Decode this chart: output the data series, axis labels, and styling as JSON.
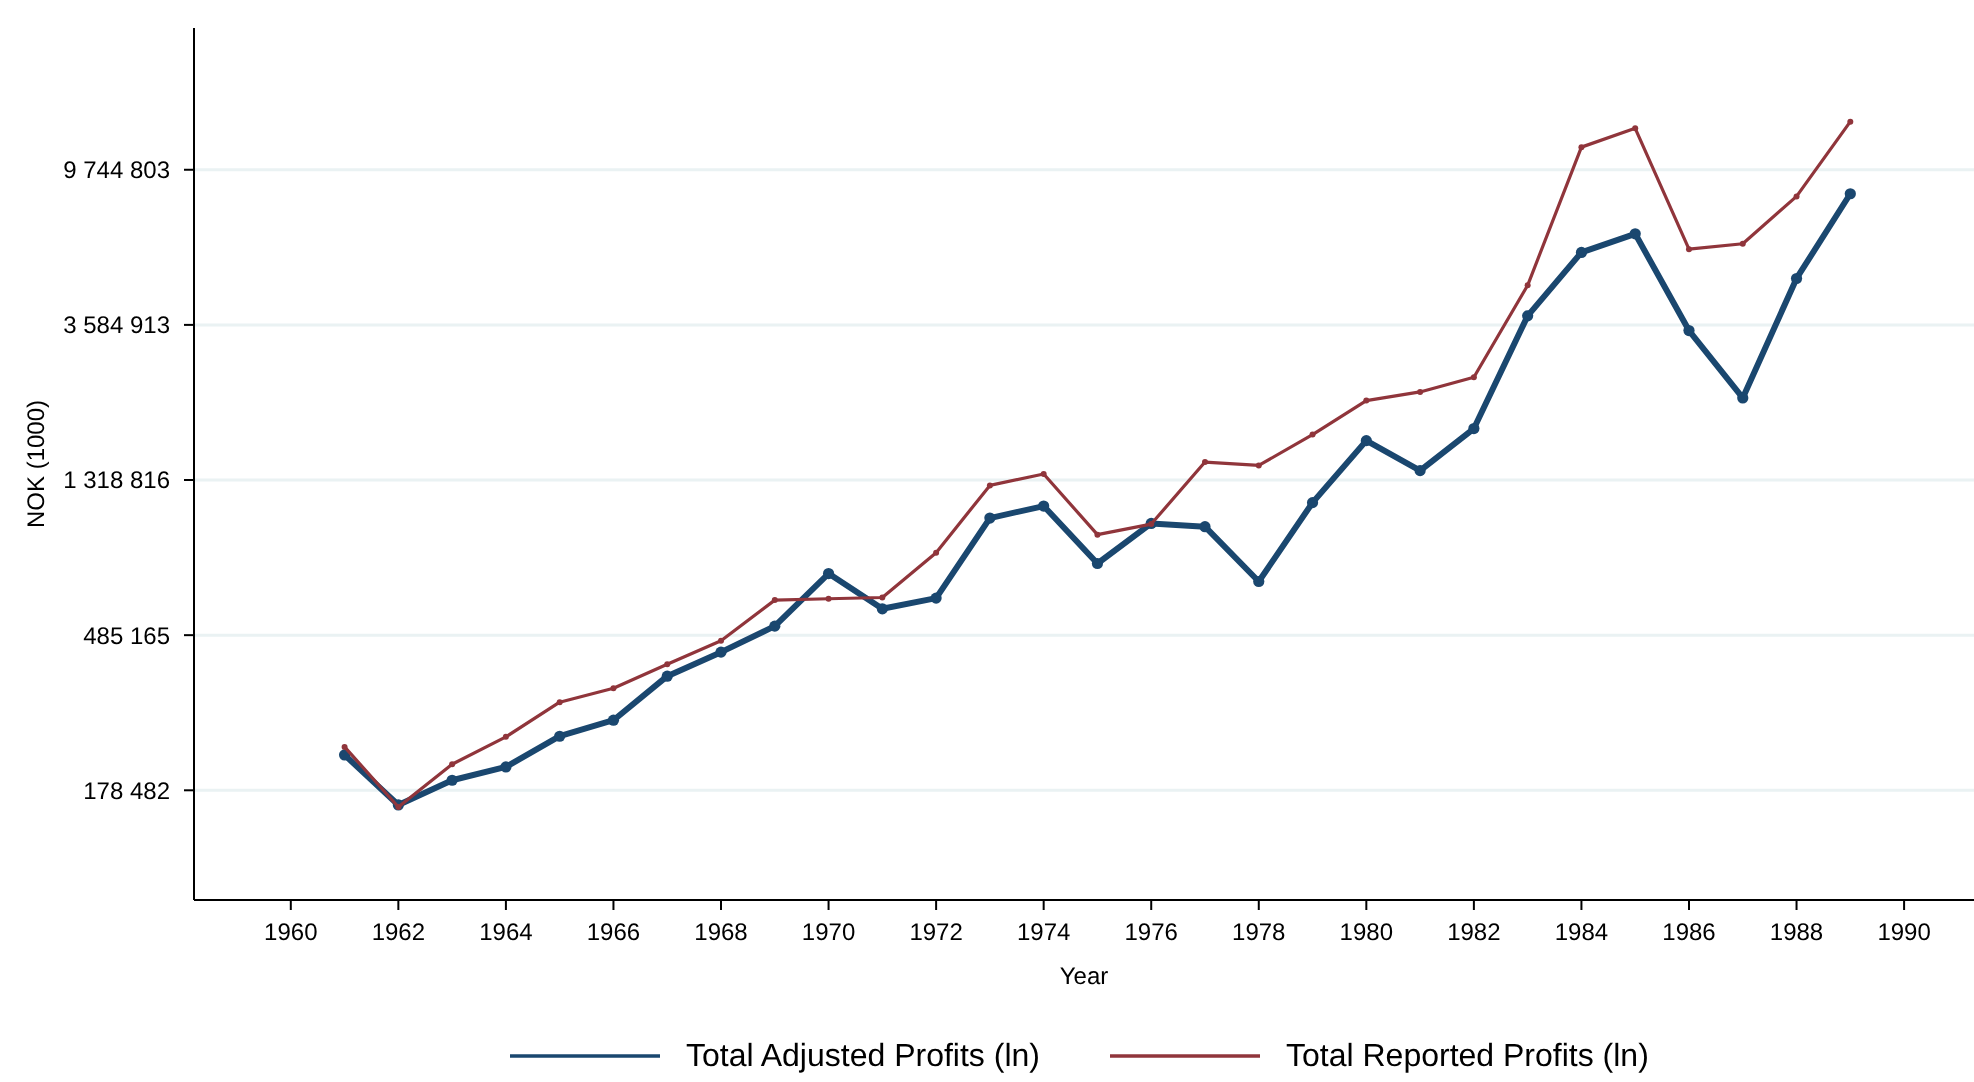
{
  "chart_data": {
    "type": "line",
    "xlabel": "Year",
    "ylabel": "NOK (1000)",
    "log": "y",
    "grid": "y",
    "legend": "bottom",
    "marker": "circle",
    "line_style": "solid",
    "x": [
      1961,
      1962,
      1963,
      1964,
      1965,
      1966,
      1967,
      1968,
      1969,
      1970,
      1971,
      1972,
      1973,
      1974,
      1975,
      1976,
      1977,
      1978,
      1979,
      1980,
      1981,
      1982,
      1983,
      1984,
      1985,
      1986,
      1987,
      1988,
      1989
    ],
    "xlim": [
      1958.2,
      1991.3
    ],
    "xticks": [
      1960,
      1962,
      1964,
      1966,
      1968,
      1970,
      1972,
      1974,
      1976,
      1978,
      1980,
      1982,
      1984,
      1986,
      1988,
      1990
    ],
    "ylim": [
      88000,
      24300000
    ],
    "yticks": [
      {
        "value": 178482,
        "label": "178 482"
      },
      {
        "value": 485165,
        "label": "485 165"
      },
      {
        "value": 1318816,
        "label": "1 318 816"
      },
      {
        "value": 3584913,
        "label": "3 584 913"
      },
      {
        "value": 9744803,
        "label": "9 744 803"
      }
    ],
    "series": [
      {
        "name": "Total Adjusted Profits (ln)",
        "color": "#1a476f",
        "values": [
          224200,
          162400,
          190400,
          207500,
          252900,
          280400,
          372400,
          434800,
          514200,
          721800,
          575100,
          616000,
          1032000,
          1115000,
          770000,
          996800,
          976300,
          685700,
          1140000,
          1700000,
          1401000,
          1838000,
          3800000,
          5719000,
          6449000,
          3457000,
          2238000,
          4835000,
          8348000
        ]
      },
      {
        "name": "Total Reported Profits (ln)",
        "color": "#90353b",
        "values": [
          236100,
          160300,
          211100,
          251900,
          314900,
          344700,
          402400,
          467900,
          608100,
          613600,
          618400,
          825500,
          1274000,
          1371000,
          927400,
          992900,
          1481000,
          1449000,
          1768000,
          2201000,
          2327000,
          2557000,
          4627000,
          11275000,
          12729000,
          5840000,
          6047000,
          8207000,
          13286000
        ]
      }
    ]
  }
}
